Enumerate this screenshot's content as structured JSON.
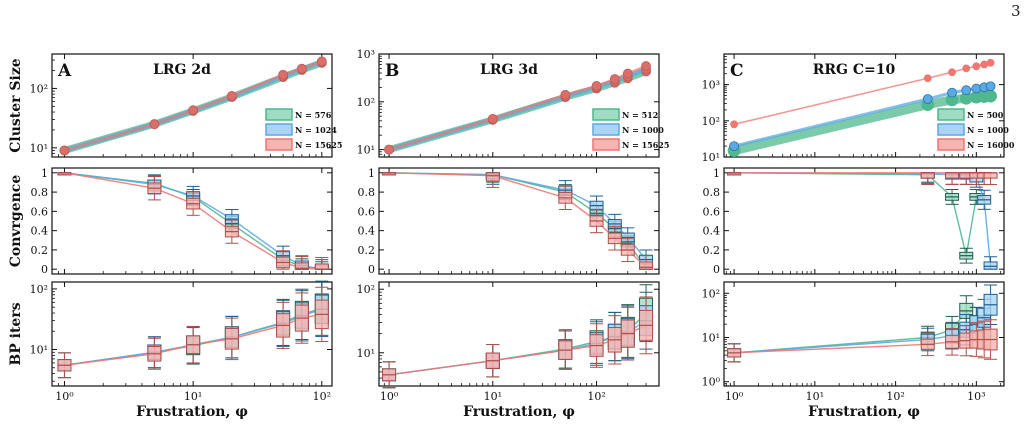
{
  "page_number": "3",
  "colors": [
    "#4fb88e",
    "#5aa9e3",
    "#ee7772"
  ],
  "row_labels": [
    "Cluster Size",
    "Convrgence",
    "BP iters"
  ],
  "columns": [
    {
      "letter": "A",
      "title": "LRG 2d",
      "xlabel": "Frustration, φ",
      "legend": [
        "N = 576",
        "N = 1024",
        "N = 15625"
      ]
    },
    {
      "letter": "B",
      "title": "LRG 3d",
      "xlabel": "Frustration, φ",
      "legend": [
        "N = 512",
        "N = 1000",
        "N = 15625"
      ]
    },
    {
      "letter": "C",
      "title": "RRG C=10",
      "xlabel": "Frustration, φ",
      "legend": [
        "N = 500",
        "N = 1000",
        "N = 16000"
      ]
    }
  ],
  "chart_data": [
    {
      "type": "line",
      "panel": "A-cluster-size",
      "xscale": "log",
      "yscale": "log",
      "xlim": [
        0.8,
        120
      ],
      "ylim": [
        7,
        380
      ],
      "xticks": [
        "10⁰",
        "10¹",
        "10²"
      ],
      "yticks": [
        "10¹",
        "10²"
      ],
      "x": [
        1,
        5,
        10,
        20,
        50,
        70,
        100
      ],
      "series": [
        {
          "values": [
            9,
            25,
            42,
            72,
            155,
            205,
            270
          ]
        },
        {
          "values": [
            9,
            25,
            42,
            72,
            160,
            210,
            280
          ]
        },
        {
          "values": [
            9,
            25,
            43,
            75,
            170,
            215,
            285
          ]
        }
      ]
    },
    {
      "type": "line",
      "panel": "A-convergence",
      "xscale": "log",
      "xlim": [
        0.8,
        120
      ],
      "ylim": [
        -0.05,
        1.05
      ],
      "xticks": [
        "10⁰",
        "10¹",
        "10²"
      ],
      "yticks": [
        "0",
        "0.2",
        "0.4",
        "0.6",
        "0.8",
        "1"
      ],
      "x": [
        1,
        5,
        10,
        20,
        50,
        70,
        100
      ],
      "series": [
        {
          "values": [
            1.0,
            0.89,
            0.75,
            0.47,
            0.1,
            0.03,
            0.0
          ]
        },
        {
          "values": [
            1.0,
            0.88,
            0.76,
            0.52,
            0.14,
            0.04,
            0.0
          ]
        },
        {
          "values": [
            1.0,
            0.84,
            0.68,
            0.39,
            0.07,
            0.01,
            0.0
          ]
        }
      ]
    },
    {
      "type": "box",
      "panel": "A-bp-iters",
      "xscale": "log",
      "yscale": "log",
      "xlim": [
        0.8,
        120
      ],
      "ylim": [
        2.5,
        130
      ],
      "xticks": [
        "10⁰",
        "10¹",
        "10²"
      ],
      "yticks": [
        "10¹",
        "10²"
      ],
      "x": [
        1,
        5,
        10,
        20,
        50,
        70,
        100
      ],
      "series": [
        {
          "values": [
            5.5,
            9,
            11.5,
            16,
            28,
            38,
            48
          ]
        },
        {
          "values": [
            5.5,
            9,
            12,
            16,
            27,
            36,
            46
          ]
        },
        {
          "values": [
            5.5,
            8.5,
            12,
            15,
            25,
            33,
            38
          ]
        }
      ]
    },
    {
      "type": "line",
      "panel": "B-cluster-size",
      "xscale": "log",
      "yscale": "log",
      "xlim": [
        0.8,
        400
      ],
      "ylim": [
        7,
        1000
      ],
      "xticks": [
        "10⁰",
        "10¹",
        "10²"
      ],
      "yticks": [
        "10¹",
        "10²",
        "10³"
      ],
      "x": [
        1,
        10,
        50,
        100,
        150,
        200,
        300
      ],
      "series": [
        {
          "values": [
            10,
            42,
            125,
            190,
            250,
            310,
            430
          ]
        },
        {
          "values": [
            10,
            43,
            130,
            200,
            270,
            340,
            480
          ]
        },
        {
          "values": [
            10,
            44,
            140,
            215,
            300,
            390,
            560
          ]
        }
      ]
    },
    {
      "type": "line",
      "panel": "B-convergence",
      "xscale": "log",
      "xlim": [
        0.8,
        400
      ],
      "ylim": [
        -0.05,
        1.05
      ],
      "xticks": [
        "10⁰",
        "10¹",
        "10²"
      ],
      "yticks": [
        "0",
        "0.2",
        "0.4",
        "0.6",
        "0.8",
        "1"
      ],
      "x": [
        1,
        10,
        50,
        100,
        150,
        200,
        300
      ],
      "series": [
        {
          "values": [
            1.0,
            0.98,
            0.8,
            0.58,
            0.42,
            0.27,
            0.02
          ]
        },
        {
          "values": [
            1.0,
            0.98,
            0.82,
            0.66,
            0.47,
            0.33,
            0.1
          ]
        },
        {
          "values": [
            1.0,
            0.97,
            0.74,
            0.5,
            0.32,
            0.2,
            0.02
          ]
        }
      ]
    },
    {
      "type": "box",
      "panel": "B-bp-iters",
      "xscale": "log",
      "yscale": "log",
      "xlim": [
        0.8,
        400
      ],
      "ylim": [
        3,
        130
      ],
      "xticks": [
        "10⁰",
        "10¹",
        "10²"
      ],
      "yticks": [
        "10¹",
        "10²"
      ],
      "x": [
        1,
        10,
        50,
        100,
        150,
        200,
        300
      ],
      "series": [
        {
          "values": [
            4.5,
            7.5,
            11.5,
            15,
            18,
            22,
            42
          ]
        },
        {
          "values": [
            4.5,
            7.5,
            11,
            14,
            18,
            21,
            32
          ]
        },
        {
          "values": [
            4.5,
            7.5,
            11,
            13,
            16,
            20,
            27
          ]
        }
      ]
    },
    {
      "type": "line",
      "panel": "C-cluster-size",
      "xscale": "log",
      "yscale": "log",
      "xlim": [
        0.75,
        2200
      ],
      "ylim": [
        10,
        7000
      ],
      "xticks": [
        "10⁰",
        "10¹",
        "10²",
        "10³"
      ],
      "yticks": [
        "10¹",
        "10²",
        "10³"
      ],
      "x": [
        1,
        250,
        500,
        750,
        1000,
        1250,
        1500
      ],
      "series": [
        {
          "x": [
            1,
            250,
            500,
            750,
            1000,
            1250,
            1500
          ],
          "values": [
            15,
            280,
            380,
            420,
            450,
            470,
            480
          ]
        },
        {
          "x": [
            1,
            250,
            500,
            750,
            1000,
            1250,
            1500
          ],
          "values": [
            20,
            400,
            600,
            700,
            780,
            840,
            900
          ]
        },
        {
          "x": [
            1,
            250,
            500,
            750,
            1000,
            1250,
            1500
          ],
          "values": [
            80,
            1500,
            2200,
            2800,
            3200,
            3600,
            4000
          ]
        }
      ]
    },
    {
      "type": "line",
      "panel": "C-convergence",
      "xscale": "log",
      "xlim": [
        0.75,
        2200
      ],
      "ylim": [
        -0.05,
        1.05
      ],
      "xticks": [
        "10⁰",
        "10¹",
        "10²",
        "10³"
      ],
      "yticks": [
        "0",
        "0.2",
        "0.4",
        "0.6",
        "0.8",
        "1"
      ],
      "x": [
        1,
        250,
        500,
        750,
        1000,
        1250,
        1500
      ],
      "series": [
        {
          "x": [
            1,
            250,
            500,
            750,
            1000
          ],
          "values": [
            1.0,
            0.98,
            0.75,
            0.14,
            0.75
          ]
        },
        {
          "x": [
            1,
            250,
            500,
            750,
            1000,
            1250,
            1500
          ],
          "values": [
            1.0,
            0.99,
            0.98,
            0.98,
            0.95,
            0.72,
            0.03
          ]
        },
        {
          "x": [
            1,
            250,
            500,
            750,
            1000,
            1250,
            1500
          ],
          "values": [
            1.0,
            1.0,
            1.0,
            1.0,
            1.0,
            1.0,
            1.0
          ]
        }
      ]
    },
    {
      "type": "box",
      "panel": "C-bp-iters",
      "xscale": "log",
      "yscale": "log",
      "xlim": [
        0.75,
        2200
      ],
      "ylim": [
        0.8,
        180
      ],
      "xticks": [
        "10⁰",
        "10¹",
        "10²",
        "10³"
      ],
      "yticks": [
        "10⁰",
        "10¹",
        "10²"
      ],
      "x": [
        1,
        250,
        500,
        750,
        1000,
        1250,
        1500
      ],
      "series": [
        {
          "x": [
            1,
            250,
            500,
            750,
            1000
          ],
          "values": [
            4.5,
            10,
            15,
            40,
            20
          ]
        },
        {
          "x": [
            1,
            250,
            500,
            750,
            1000,
            1250,
            1500
          ],
          "values": [
            4.5,
            9,
            11,
            15,
            20,
            28,
            55
          ]
        },
        {
          "x": [
            1,
            250,
            500,
            750,
            1000,
            1250,
            1500
          ],
          "values": [
            4.5,
            7,
            8,
            8.5,
            9,
            9,
            9
          ]
        }
      ]
    }
  ]
}
